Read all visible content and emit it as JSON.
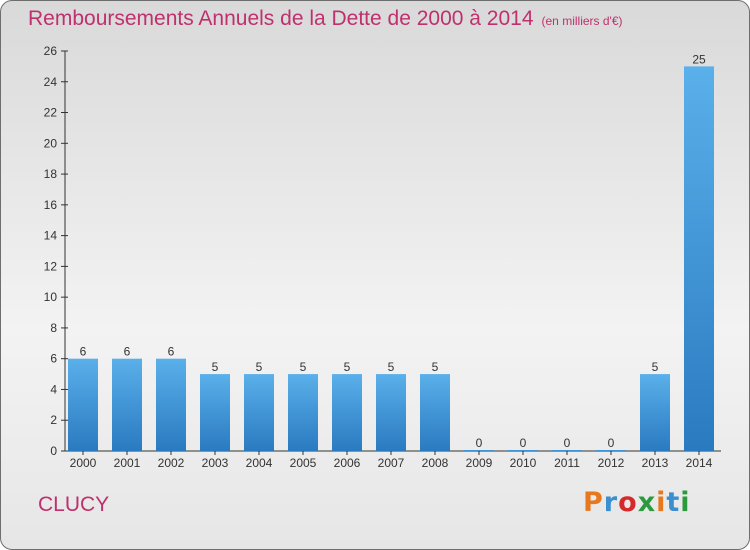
{
  "header": {
    "title": "Remboursements Annuels de la Dette de 2000 à 2014",
    "unit": "(en milliers d'€)"
  },
  "footer": {
    "commune": "CLUCY",
    "logo_text": "Proxiti",
    "logo_colors": [
      "#e8781e",
      "#3a8fd0",
      "#d42a2a",
      "#2a9a3c",
      "#e8781e",
      "#3a8fd0",
      "#2a9a3c"
    ]
  },
  "colors": {
    "bar_top": "#5ab0ea",
    "bar_bottom": "#2a7ac0",
    "title": "#c0306e",
    "axis": "#333333"
  },
  "chart_data": {
    "type": "bar",
    "title": "Remboursements Annuels de la Dette de 2000 à 2014",
    "subtitle": "(en milliers d'€)",
    "xlabel": "",
    "ylabel": "",
    "categories": [
      "2000",
      "2001",
      "2002",
      "2003",
      "2004",
      "2005",
      "2006",
      "2007",
      "2008",
      "2009",
      "2010",
      "2011",
      "2012",
      "2013",
      "2014"
    ],
    "values": [
      6,
      6,
      6,
      5,
      5,
      5,
      5,
      5,
      5,
      0,
      0,
      0,
      0,
      5,
      25
    ],
    "ylim": [
      0,
      26
    ],
    "yticks": [
      0,
      2,
      4,
      6,
      8,
      10,
      12,
      14,
      16,
      18,
      20,
      22,
      24,
      26
    ],
    "grid": false,
    "legend": "none"
  }
}
